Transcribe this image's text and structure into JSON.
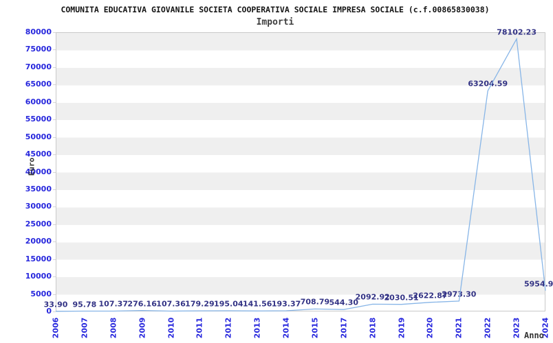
{
  "header": {
    "title": "COMUNITA EDUCATIVA GIOVANILE SOCIETA COOPERATIVA SOCIALE IMPRESA SOCIALE (c.f.00865830038)",
    "subtitle": "Importi"
  },
  "chart_data": {
    "type": "line",
    "title": "COMUNITA EDUCATIVA GIOVANILE SOCIETA COOPERATIVA SOCIALE IMPRESA SOCIALE (c.f.00865830038)",
    "subtitle": "Importi",
    "xlabel": "Anno",
    "ylabel": "Euro",
    "categories": [
      "2006",
      "2007",
      "2008",
      "2009",
      "2010",
      "2011",
      "2012",
      "2013",
      "2014",
      "2015",
      "2017",
      "2018",
      "2019",
      "2020",
      "2021",
      "2022",
      "2023",
      "2024"
    ],
    "values": [
      33.9,
      95.78,
      107.37,
      276.16,
      107.36,
      179.29,
      195.04,
      141.56,
      193.37,
      708.79,
      544.3,
      2092.92,
      2030.51,
      2622.87,
      2973.3,
      63204.59,
      78102.23,
      5954.9
    ],
    "point_labels": [
      "33.90",
      "95.78",
      "107.37",
      "276.16",
      "107.36",
      "179.29",
      "195.04",
      "141.56",
      "193.37",
      "708.79",
      "544.30",
      "2092.92",
      "2030.51",
      "2622.87",
      "2973.30",
      "63204.59",
      "78102.23",
      "5954.9"
    ],
    "yticks": [
      80000,
      75000,
      70000,
      65000,
      60000,
      55000,
      50000,
      45000,
      40000,
      35000,
      30000,
      25000,
      20000,
      15000,
      10000,
      5000,
      0
    ],
    "ylim": [
      0,
      80000
    ],
    "grid": "horizontal-bands",
    "legend": "none",
    "colors": {
      "line": "#87b5e7",
      "tick_label": "#2727dd",
      "point_label": "#333385",
      "band": "#efefef",
      "plot_border": "#c9c9c9",
      "title": "#141414",
      "subtitle": "#3f3f3f",
      "axis_title": "#333333"
    }
  }
}
